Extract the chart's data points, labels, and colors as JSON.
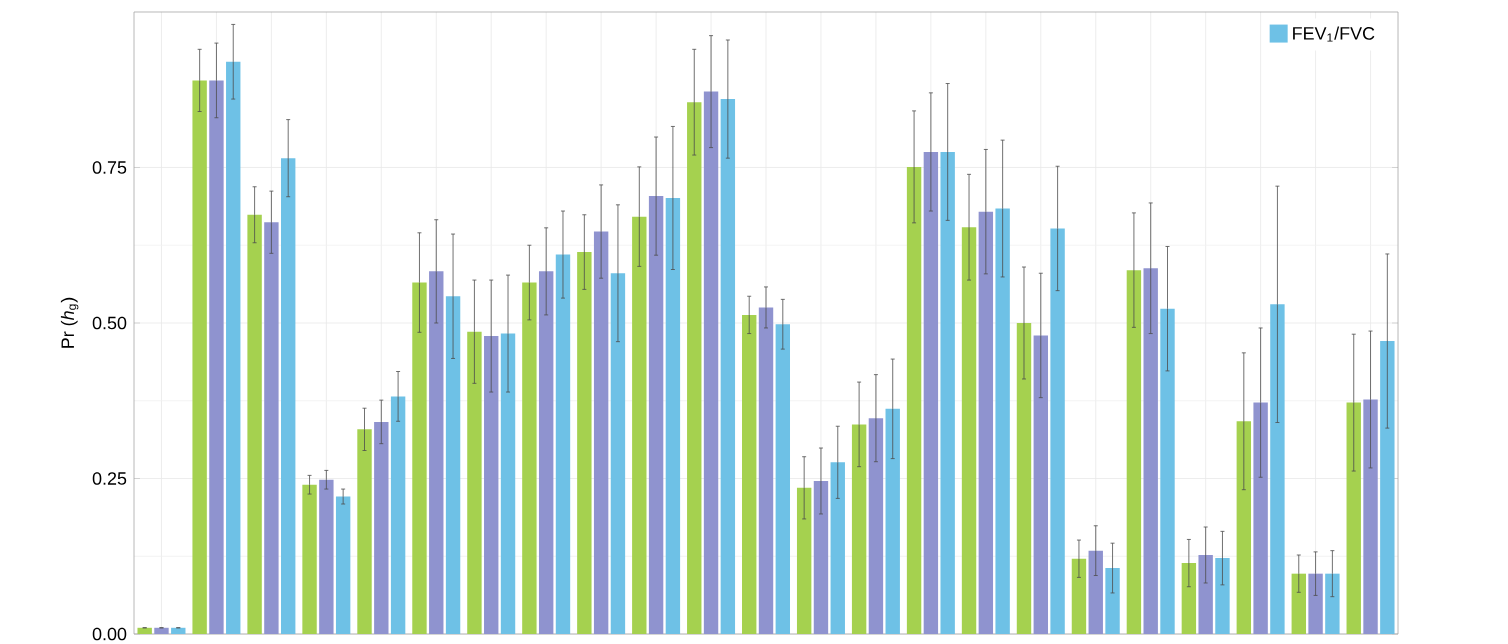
{
  "chart_data": {
    "type": "bar",
    "ylabel": "Pr (*h*$_{g}$)",
    "categories": [
      null,
      null,
      null,
      null,
      null,
      null,
      null,
      null,
      null,
      null,
      null,
      null,
      null,
      null,
      null,
      null,
      null,
      null,
      null,
      null,
      null,
      null,
      null
    ],
    "series": [
      {
        "color": "#a5d14f",
        "values": [
          0.01,
          0.89,
          0.674,
          0.24,
          0.329,
          0.565,
          0.486,
          0.565,
          0.614,
          0.671,
          0.855,
          0.513,
          0.235,
          0.337,
          0.751,
          0.654,
          0.5,
          0.121,
          0.585,
          0.114,
          0.342,
          0.097,
          0.372
        ],
        "errors": [
          null,
          0.05,
          0.045,
          0.015,
          0.034,
          0.08,
          0.083,
          0.06,
          0.06,
          0.08,
          0.085,
          0.03,
          0.05,
          0.068,
          0.09,
          0.085,
          0.09,
          0.03,
          0.092,
          0.038,
          0.11,
          0.03,
          0.11
        ]
      },
      {
        "color": "#8f93cf",
        "values": [
          0.01,
          0.89,
          0.662,
          0.248,
          0.341,
          0.583,
          0.479,
          0.583,
          0.647,
          0.704,
          0.872,
          0.525,
          0.246,
          0.347,
          0.775,
          0.679,
          0.48,
          0.134,
          0.588,
          0.127,
          0.372,
          0.097,
          0.377
        ],
        "errors": [
          null,
          0.06,
          0.05,
          0.015,
          0.035,
          0.083,
          0.09,
          0.07,
          0.075,
          0.095,
          0.09,
          0.033,
          0.053,
          0.07,
          0.095,
          0.1,
          0.1,
          0.04,
          0.105,
          0.045,
          0.12,
          0.035,
          0.11
        ]
      },
      {
        "name": "FEV$_{1}$/FVC",
        "color": "#6ec1e6",
        "values": [
          0.01,
          0.92,
          0.765,
          0.221,
          0.382,
          0.543,
          0.483,
          0.61,
          0.58,
          0.701,
          0.86,
          0.498,
          0.276,
          0.362,
          0.775,
          0.684,
          0.652,
          0.106,
          0.523,
          0.122,
          0.53,
          0.097,
          0.471
        ],
        "errors": [
          null,
          0.06,
          0.062,
          0.012,
          0.04,
          0.1,
          0.094,
          0.07,
          0.11,
          0.115,
          0.095,
          0.04,
          0.058,
          0.08,
          0.11,
          0.11,
          0.1,
          0.04,
          0.1,
          0.043,
          0.19,
          0.037,
          0.14
        ]
      }
    ],
    "ylim": [
      0,
      1
    ],
    "yticks": [
      {
        "value": 0,
        "label": "0.00"
      },
      {
        "value": 0.25,
        "label": "0.25"
      },
      {
        "value": 0.5,
        "label": "0.50"
      },
      {
        "value": 0.75,
        "label": "0.75"
      }
    ],
    "grid": true,
    "legend": "top right",
    "tick_labels": "y"
  }
}
